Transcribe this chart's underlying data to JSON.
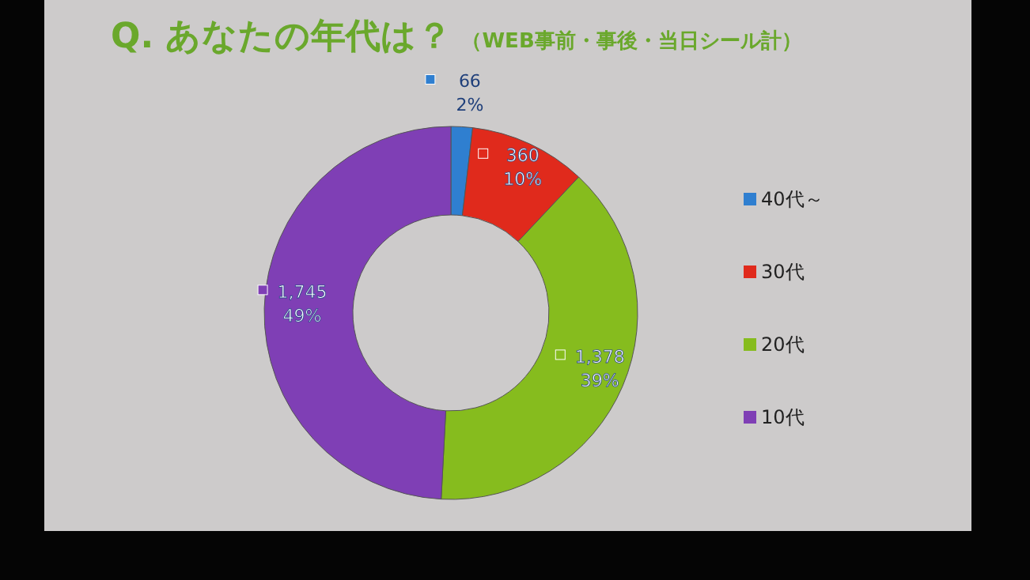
{
  "chart_data": {
    "type": "donut",
    "title": "Q. あなたの年代は？",
    "subtitle": "（WEB事前・事後・当日シール計）",
    "categories": [
      "40代～",
      "30代",
      "20代",
      "10代"
    ],
    "values": [
      66,
      360,
      1378,
      1745
    ],
    "colors": [
      "#2f7fd0",
      "#e02a1c",
      "#86bc1e",
      "#7f3fb5"
    ],
    "value_labels": [
      "66\n2%",
      "360\n10%",
      "1,378\n39%",
      "1,745\n49%"
    ],
    "legend": "right"
  }
}
